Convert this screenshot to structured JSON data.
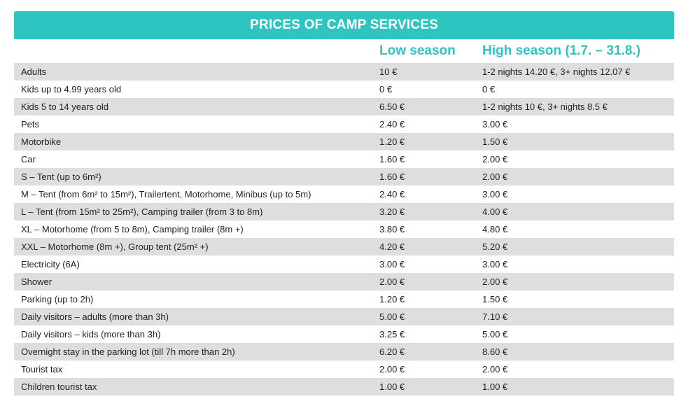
{
  "title": "PRICES OF CAMP SERVICES",
  "columns": {
    "name": "",
    "low": "Low season",
    "high": "High season (1.7. – 31.8.)"
  },
  "colors": {
    "accent": "#2ec4c0",
    "row_shade": "#dedede"
  },
  "rows": [
    {
      "name": "Adults",
      "low": "10 €",
      "high": "1-2 nights 14.20 €, 3+ nights 12.07 €"
    },
    {
      "name": "Kids up to 4.99 years old",
      "low": "0 €",
      "high": "0 €"
    },
    {
      "name": "Kids 5 to 14 years old",
      "low": "6.50 €",
      "high": "1-2 nights 10 €, 3+ nights 8.5 €"
    },
    {
      "name": "Pets",
      "low": "2.40 €",
      "high": "3.00 €"
    },
    {
      "name": "Motorbike",
      "low": "1.20 €",
      "high": "1.50 €"
    },
    {
      "name": "Car",
      "low": "1.60 €",
      "high": "2.00 €"
    },
    {
      "name": "S – Tent (up to 6m²)",
      "low": "1.60 €",
      "high": "2.00 €"
    },
    {
      "name": "M – Tent (from 6m² to 15m²), Trailertent, Motorhome, Minibus (up to 5m)",
      "low": "2.40 €",
      "high": "3.00 €"
    },
    {
      "name": "L – Tent (from 15m² to 25m²), Camping trailer (from 3 to 8m)",
      "low": "3.20 €",
      "high": "4.00 €"
    },
    {
      "name": "XL – Motorhome (from 5 to 8m), Camping trailer (8m +)",
      "low": "3.80 €",
      "high": "4.80 €"
    },
    {
      "name": "XXL – Motorhome (8m +), Group tent (25m² +)",
      "low": "4.20 €",
      "high": "5.20 €"
    },
    {
      "name": "Electricity (6A)",
      "low": "3.00 €",
      "high": "3.00 €"
    },
    {
      "name": "Shower",
      "low": "2.00 €",
      "high": "2.00 €"
    },
    {
      "name": "Parking (up to 2h)",
      "low": "1.20 €",
      "high": "1.50 €"
    },
    {
      "name": "Daily visitors – adults (more than 3h)",
      "low": "5.00 €",
      "high": "7.10 €"
    },
    {
      "name": "Daily visitors – kids (more than 3h)",
      "low": "3.25 €",
      "high": "5.00 €"
    },
    {
      "name": "Overnight stay in the parking lot (till 7h more than 2h)",
      "low": "6.20 €",
      "high": "8.60 €"
    },
    {
      "name": "Tourist tax",
      "low": "2.00 €",
      "high": "2.00 €"
    },
    {
      "name": "Children tourist tax",
      "low": "1.00 €",
      "high": "1.00 €"
    }
  ]
}
